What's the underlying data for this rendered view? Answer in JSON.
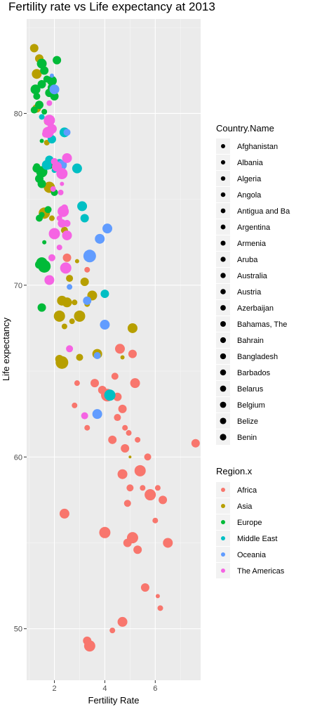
{
  "chart_data": {
    "type": "scatter",
    "title": "Fertility rate vs Life expectancy at 2013",
    "xlabel": "Fertility Rate",
    "ylabel": "Life expectancy",
    "xlim": [
      0.9,
      7.8
    ],
    "ylim": [
      47,
      85.5
    ],
    "x_ticks": [
      2,
      4,
      6
    ],
    "y_ticks": [
      50,
      60,
      70,
      80
    ],
    "grid": true,
    "legend_position": "right",
    "size_legend": {
      "title": "Country.Name",
      "entries": [
        "Afghanistan",
        "Albania",
        "Algeria",
        "Angola",
        "Antigua and Ba",
        "Argentina",
        "Armenia",
        "Aruba",
        "Australia",
        "Austria",
        "Azerbaijan",
        "Bahamas, The",
        "Bahrain",
        "Bangladesh",
        "Barbados",
        "Belarus",
        "Belgium",
        "Belize",
        "Benin"
      ]
    },
    "color_legend": {
      "title": "Region.x",
      "entries": [
        {
          "name": "Africa",
          "color": "#F8766D"
        },
        {
          "name": "Asia",
          "color": "#B79F00"
        },
        {
          "name": "Europe",
          "color": "#00BA38"
        },
        {
          "name": "Middle East",
          "color": "#00BFC4"
        },
        {
          "name": "Oceania",
          "color": "#619CFF"
        },
        {
          "name": "The Americas",
          "color": "#F564E3"
        }
      ]
    },
    "series": [
      {
        "name": "Africa",
        "points": [
          [
            7.6,
            60.8,
            6
          ],
          [
            6.5,
            55.0,
            7
          ],
          [
            6.3,
            57.5,
            6
          ],
          [
            6.2,
            51.2,
            4
          ],
          [
            6.1,
            51.9,
            3
          ],
          [
            6.1,
            58.2,
            4
          ],
          [
            6.0,
            56.3,
            4
          ],
          [
            5.8,
            57.8,
            8
          ],
          [
            5.7,
            60.0,
            5
          ],
          [
            5.6,
            52.4,
            6
          ],
          [
            5.5,
            58.2,
            4
          ],
          [
            5.4,
            59.2,
            8
          ],
          [
            5.3,
            54.6,
            6
          ],
          [
            5.3,
            61.0,
            4
          ],
          [
            5.2,
            64.3,
            7
          ],
          [
            5.1,
            66.0,
            6
          ],
          [
            5.1,
            55.3,
            8
          ],
          [
            5.0,
            58.2,
            5
          ],
          [
            4.95,
            61.4,
            4
          ],
          [
            4.9,
            57.3,
            5
          ],
          [
            4.9,
            55.0,
            6
          ],
          [
            4.8,
            60.5,
            6
          ],
          [
            4.8,
            61.7,
            4
          ],
          [
            4.7,
            59.0,
            7
          ],
          [
            4.7,
            62.8,
            6
          ],
          [
            4.7,
            50.4,
            7
          ],
          [
            4.6,
            66.3,
            7
          ],
          [
            4.5,
            63.5,
            6
          ],
          [
            4.5,
            62.3,
            5
          ],
          [
            4.4,
            64.7,
            5
          ],
          [
            4.3,
            61.0,
            6
          ],
          [
            4.3,
            49.9,
            4
          ],
          [
            4.1,
            63.6,
            9
          ],
          [
            4.0,
            55.6,
            8
          ],
          [
            3.9,
            63.9,
            6
          ],
          [
            3.6,
            64.3,
            6
          ],
          [
            3.4,
            49.0,
            8
          ],
          [
            3.3,
            61.7,
            4
          ],
          [
            3.3,
            49.3,
            6
          ],
          [
            3.3,
            70.9,
            4
          ],
          [
            2.9,
            64.3,
            4
          ],
          [
            2.8,
            63.0,
            4
          ],
          [
            2.5,
            71.6,
            6
          ],
          [
            2.4,
            56.7,
            7
          ]
        ]
      },
      {
        "name": "Asia",
        "points": [
          [
            5.1,
            67.5,
            7
          ],
          [
            5.0,
            60.0,
            2
          ],
          [
            4.7,
            65.8,
            3
          ],
          [
            3.7,
            66.0,
            7
          ],
          [
            3.5,
            69.4,
            7
          ],
          [
            3.3,
            68.9,
            4
          ],
          [
            3.2,
            70.2,
            6
          ],
          [
            3.0,
            68.2,
            8
          ],
          [
            3.0,
            65.8,
            5
          ],
          [
            2.9,
            71.4,
            3
          ],
          [
            2.8,
            69.0,
            4
          ],
          [
            2.7,
            67.9,
            4
          ],
          [
            2.6,
            70.4,
            5
          ],
          [
            2.5,
            69.0,
            7
          ],
          [
            2.4,
            67.6,
            4
          ],
          [
            2.3,
            69.1,
            7
          ],
          [
            2.2,
            68.2,
            8
          ],
          [
            2.3,
            65.5,
            9
          ],
          [
            2.2,
            65.7,
            6
          ],
          [
            2.4,
            73.2,
            5
          ],
          [
            1.8,
            75.7,
            8
          ],
          [
            1.6,
            74.2,
            8
          ],
          [
            1.9,
            73.9,
            4
          ],
          [
            1.3,
            82.3,
            7
          ],
          [
            1.2,
            83.8,
            6
          ],
          [
            1.3,
            80.3,
            6
          ],
          [
            1.4,
            83.2,
            6
          ],
          [
            1.7,
            79.5,
            4
          ],
          [
            1.7,
            78.3,
            4
          ]
        ]
      },
      {
        "name": "Europe",
        "points": [
          [
            2.1,
            83.1,
            6
          ],
          [
            2.0,
            81.0,
            6
          ],
          [
            1.9,
            81.9,
            7
          ],
          [
            1.8,
            81.2,
            6
          ],
          [
            1.7,
            82.0,
            5
          ],
          [
            1.6,
            82.5,
            6
          ],
          [
            1.5,
            81.7,
            6
          ],
          [
            1.5,
            82.9,
            7
          ],
          [
            1.4,
            80.5,
            6
          ],
          [
            1.3,
            81.0,
            5
          ],
          [
            1.25,
            81.4,
            7
          ],
          [
            1.2,
            80.2,
            5
          ],
          [
            1.3,
            76.9,
            5
          ],
          [
            1.5,
            76.6,
            8
          ],
          [
            1.5,
            75.9,
            6
          ],
          [
            1.4,
            76.2,
            6
          ],
          [
            1.3,
            76.8,
            6
          ],
          [
            1.5,
            74.1,
            4
          ],
          [
            1.4,
            73.9,
            5
          ],
          [
            1.5,
            71.3,
            8
          ],
          [
            1.6,
            71.1,
            9
          ],
          [
            1.4,
            71.2,
            6
          ],
          [
            1.5,
            68.7,
            6
          ],
          [
            1.6,
            72.5,
            3
          ],
          [
            1.5,
            78.4,
            3
          ],
          [
            1.8,
            77.0,
            6
          ],
          [
            2.0,
            75.4,
            5
          ],
          [
            1.75,
            74.4,
            5
          ],
          [
            1.6,
            80.1,
            4
          ],
          [
            1.9,
            81.5,
            6
          ],
          [
            2.0,
            81.4,
            4
          ]
        ]
      },
      {
        "name": "Middle East",
        "points": [
          [
            4.2,
            63.6,
            8
          ],
          [
            4.0,
            69.5,
            6
          ],
          [
            3.2,
            73.9,
            6
          ],
          [
            3.1,
            74.6,
            7
          ],
          [
            2.9,
            76.8,
            7
          ],
          [
            2.4,
            78.9,
            7
          ],
          [
            2.2,
            77.1,
            6
          ],
          [
            2.0,
            76.7,
            4
          ],
          [
            1.8,
            77.3,
            6
          ],
          [
            1.7,
            77.0,
            7
          ],
          [
            1.9,
            78.5,
            6
          ],
          [
            1.5,
            79.8,
            4
          ]
        ]
      },
      {
        "name": "Oceania",
        "points": [
          [
            4.1,
            73.3,
            7
          ],
          [
            4.0,
            67.7,
            7
          ],
          [
            3.8,
            72.7,
            7
          ],
          [
            3.7,
            65.9,
            5
          ],
          [
            3.7,
            62.5,
            7
          ],
          [
            3.4,
            71.7,
            9
          ],
          [
            3.3,
            69.1,
            6
          ],
          [
            2.6,
            69.9,
            4
          ],
          [
            2.5,
            78.9,
            5
          ],
          [
            2.3,
            77.0,
            7
          ],
          [
            2.0,
            81.4,
            7
          ],
          [
            1.9,
            82.2,
            3
          ]
        ]
      },
      {
        "name": "The Americas",
        "points": [
          [
            3.2,
            62.4,
            5
          ],
          [
            2.6,
            66.3,
            5
          ],
          [
            2.5,
            77.4,
            7
          ],
          [
            2.5,
            73.6,
            5
          ],
          [
            2.5,
            72.9,
            7
          ],
          [
            2.45,
            71.0,
            8
          ],
          [
            2.4,
            74.5,
            5
          ],
          [
            2.35,
            74.3,
            8
          ],
          [
            2.3,
            76.5,
            8
          ],
          [
            2.3,
            75.9,
            3
          ],
          [
            2.25,
            75.4,
            4
          ],
          [
            2.3,
            73.6,
            6
          ],
          [
            2.2,
            72.2,
            4
          ],
          [
            2.2,
            73.9,
            4
          ],
          [
            2.1,
            76.9,
            7
          ],
          [
            2.0,
            73.0,
            8
          ],
          [
            1.9,
            71.6,
            5
          ],
          [
            1.8,
            70.3,
            7
          ],
          [
            2.0,
            77.2,
            5
          ],
          [
            1.9,
            79.1,
            7
          ],
          [
            1.8,
            79.6,
            8
          ],
          [
            1.75,
            78.9,
            8
          ],
          [
            1.8,
            80.6,
            4
          ],
          [
            1.65,
            78.8,
            5
          ],
          [
            1.95,
            75.6,
            4
          ]
        ]
      }
    ]
  }
}
